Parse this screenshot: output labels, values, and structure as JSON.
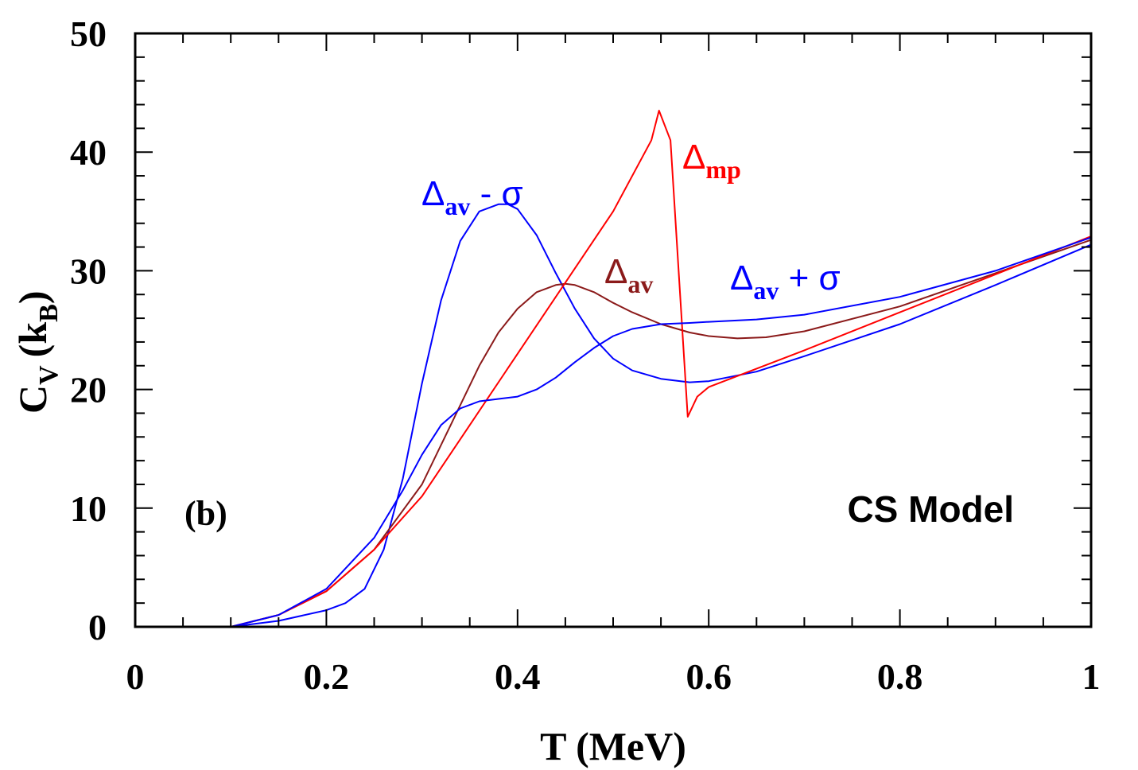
{
  "chart_data": {
    "type": "line",
    "title": "",
    "xlabel": "T (MeV)",
    "ylabel_main": "C",
    "ylabel_sub": "V",
    "ylabel_units_open": "(k",
    "ylabel_units_sub": "B",
    "ylabel_units_close": ")",
    "xlim": [
      0,
      1
    ],
    "ylim": [
      0,
      50
    ],
    "x_ticks": [
      0,
      0.2,
      0.4,
      0.6,
      0.8,
      1
    ],
    "x_tick_labels": [
      "0",
      "0.2",
      "0.4",
      "0.6",
      "0.8",
      "1"
    ],
    "y_ticks": [
      0,
      10,
      20,
      30,
      40,
      50
    ],
    "y_tick_labels": [
      "0",
      "10",
      "20",
      "30",
      "40",
      "50"
    ],
    "grid": false,
    "annotations": {
      "panel": "(b)",
      "model": "CS Model"
    },
    "series": [
      {
        "name": "Δav - σ",
        "label_main": "Δ",
        "label_sub": "av",
        "label_suffix": " - σ",
        "color": "#0000ff",
        "x": [
          0.1,
          0.15,
          0.2,
          0.22,
          0.24,
          0.26,
          0.28,
          0.3,
          0.32,
          0.34,
          0.36,
          0.38,
          0.39,
          0.4,
          0.42,
          0.44,
          0.46,
          0.48,
          0.5,
          0.52,
          0.55,
          0.58,
          0.6,
          0.65,
          0.7,
          0.8,
          0.9,
          1.0
        ],
        "y": [
          0.0,
          0.5,
          1.4,
          2.0,
          3.2,
          6.5,
          12.5,
          20.5,
          27.5,
          32.5,
          35.0,
          35.6,
          35.6,
          35.2,
          33.0,
          29.8,
          26.8,
          24.3,
          22.6,
          21.6,
          20.9,
          20.6,
          20.7,
          21.5,
          22.8,
          25.5,
          28.8,
          32.2
        ]
      },
      {
        "name": "Δav",
        "label_main": "Δ",
        "label_sub": "av",
        "label_suffix": "",
        "color": "#8b1a1a",
        "x": [
          0.1,
          0.15,
          0.2,
          0.25,
          0.3,
          0.33,
          0.36,
          0.38,
          0.4,
          0.42,
          0.44,
          0.45,
          0.46,
          0.48,
          0.5,
          0.52,
          0.55,
          0.58,
          0.6,
          0.63,
          0.66,
          0.7,
          0.8,
          0.9,
          1.0
        ],
        "y": [
          0.0,
          1.0,
          3.0,
          6.5,
          12.0,
          17.0,
          22.0,
          24.8,
          26.8,
          28.2,
          28.8,
          28.9,
          28.8,
          28.2,
          27.3,
          26.5,
          25.5,
          24.8,
          24.5,
          24.3,
          24.4,
          24.9,
          27.0,
          29.8,
          32.6
        ]
      },
      {
        "name": "Δmp",
        "label_main": "Δ",
        "label_sub": "mp",
        "label_suffix": "",
        "color": "#ff0000",
        "x": [
          0.1,
          0.15,
          0.2,
          0.25,
          0.3,
          0.35,
          0.4,
          0.45,
          0.5,
          0.54,
          0.548,
          0.56,
          0.578,
          0.588,
          0.6,
          0.7,
          0.8,
          0.9,
          1.0
        ],
        "y": [
          0.0,
          1.0,
          3.0,
          6.5,
          11.0,
          17.0,
          23.0,
          29.0,
          35.0,
          41.0,
          43.5,
          41.0,
          17.7,
          19.4,
          20.2,
          23.3,
          26.5,
          29.7,
          32.9
        ]
      },
      {
        "name": "Δav + σ",
        "label_main": "Δ",
        "label_sub": "av",
        "label_suffix": " + σ",
        "color": "#0000ff",
        "x": [
          0.1,
          0.15,
          0.2,
          0.25,
          0.28,
          0.3,
          0.32,
          0.34,
          0.36,
          0.38,
          0.4,
          0.42,
          0.44,
          0.46,
          0.48,
          0.5,
          0.52,
          0.55,
          0.58,
          0.6,
          0.65,
          0.7,
          0.8,
          0.9,
          1.0
        ],
        "y": [
          0.0,
          1.0,
          3.2,
          7.5,
          11.5,
          14.5,
          17.0,
          18.4,
          19.0,
          19.2,
          19.4,
          20.0,
          21.0,
          22.3,
          23.5,
          24.5,
          25.1,
          25.5,
          25.6,
          25.7,
          25.9,
          26.3,
          27.8,
          30.0,
          32.8
        ]
      }
    ]
  }
}
